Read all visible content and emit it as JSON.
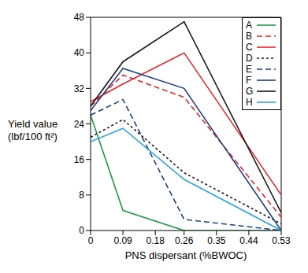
{
  "chart_data": {
    "type": "line",
    "x_label": "PNS dispersant (%BWOC)",
    "y_label": "Yield value (lbf/100 ft²)",
    "x": [
      0,
      0.09,
      0.26,
      0.53
    ],
    "xlim": [
      0,
      0.53
    ],
    "xticks": [
      0,
      0.09,
      0.18,
      0.26,
      0.35,
      0.44,
      0.53
    ],
    "ylim": [
      0,
      48
    ],
    "yticks": [
      0,
      8,
      16,
      24,
      32,
      40,
      48
    ],
    "grid": false,
    "legend": "top-right",
    "series": [
      {
        "name": "A",
        "color": "#1e9a45",
        "line_style": "solid",
        "values": [
          26,
          4.5,
          0,
          0
        ]
      },
      {
        "name": "B",
        "color": "#e3262b",
        "line_style": "dashed",
        "values": [
          28,
          35,
          30,
          3
        ]
      },
      {
        "name": "C",
        "color": "#e3262b",
        "line_style": "solid",
        "values": [
          29,
          33,
          40,
          8
        ]
      },
      {
        "name": "D",
        "color": "#1a1a1a",
        "line_style": "dotted",
        "values": [
          21,
          25,
          13,
          1.5
        ]
      },
      {
        "name": "E",
        "color": "#1f3f80",
        "line_style": "dashed",
        "values": [
          26,
          29.5,
          2.5,
          0
        ]
      },
      {
        "name": "F",
        "color": "#1f3f80",
        "line_style": "solid",
        "values": [
          27,
          36.5,
          32,
          0
        ]
      },
      {
        "name": "G",
        "color": "#1a1a1a",
        "line_style": "solid",
        "values": [
          28,
          38,
          47,
          4
        ]
      },
      {
        "name": "H",
        "color": "#2ea3dc",
        "line_style": "solid",
        "values": [
          20,
          23,
          11.5,
          0
        ]
      }
    ]
  }
}
